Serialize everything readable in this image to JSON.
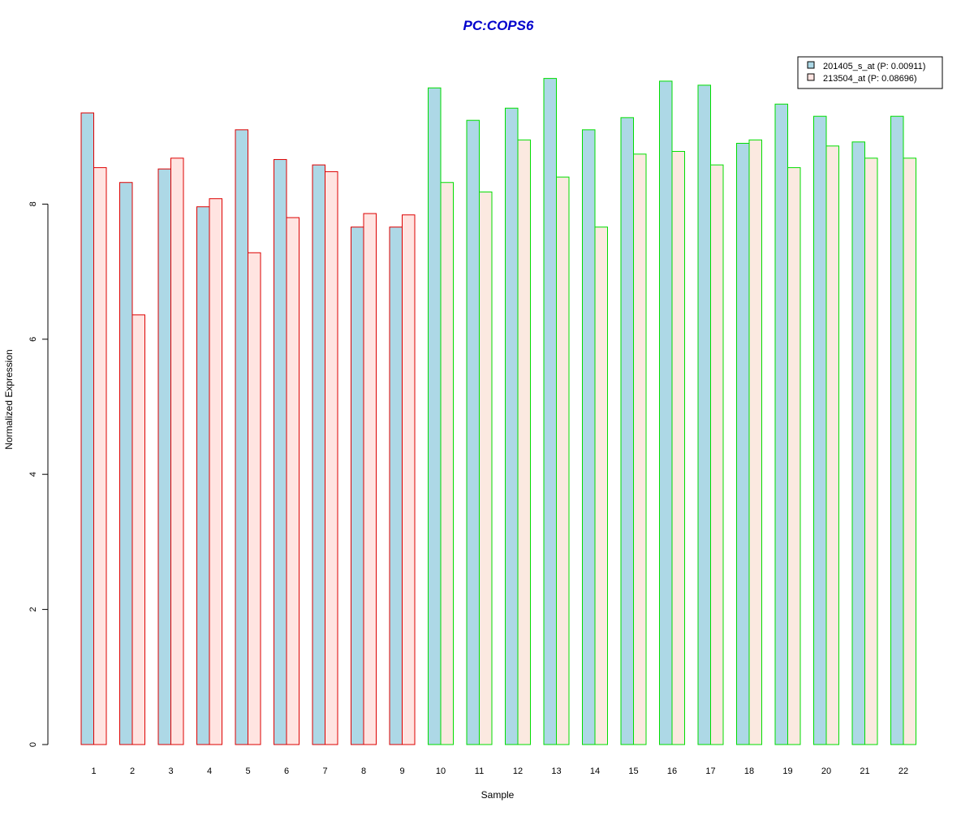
{
  "chart_data": {
    "type": "bar",
    "title": "PC:COPS6",
    "xlabel": "Sample",
    "ylabel": "Normalized Expression",
    "ylim": [
      0,
      10.3
    ],
    "y_ticks": [
      0,
      2,
      4,
      6,
      8
    ],
    "categories": [
      "1",
      "2",
      "3",
      "4",
      "5",
      "6",
      "7",
      "8",
      "9",
      "10",
      "11",
      "12",
      "13",
      "14",
      "15",
      "16",
      "17",
      "18",
      "19",
      "20",
      "21",
      "22"
    ],
    "series": [
      {
        "name": "201405_s_at (P: 0.00911)",
        "fill": "#add8e6",
        "values": [
          9.35,
          8.32,
          8.52,
          7.96,
          9.1,
          8.66,
          8.58,
          7.66,
          7.66,
          9.72,
          9.24,
          9.42,
          9.86,
          9.1,
          9.28,
          9.82,
          9.76,
          8.9,
          9.48,
          9.3,
          8.92,
          9.3
        ]
      },
      {
        "name": "213504_at (P: 0.08696)",
        "fill_by_group": [
          "#ffe4e1",
          "#fbe9e0"
        ],
        "values": [
          8.54,
          6.36,
          8.68,
          8.08,
          7.28,
          7.8,
          8.48,
          7.86,
          7.84,
          8.32,
          8.18,
          8.95,
          8.4,
          7.66,
          8.74,
          8.78,
          8.58,
          8.95,
          8.54,
          8.86,
          8.68,
          8.68
        ]
      }
    ],
    "groups": [
      {
        "samples": [
          1,
          9
        ],
        "border_color": "#dd0000"
      },
      {
        "samples": [
          10,
          22
        ],
        "border_color": "#00dd00"
      }
    ],
    "legend_placement": "top-right",
    "grid": false,
    "colors": {
      "title": "#0000cc",
      "axis": "#000000"
    }
  }
}
